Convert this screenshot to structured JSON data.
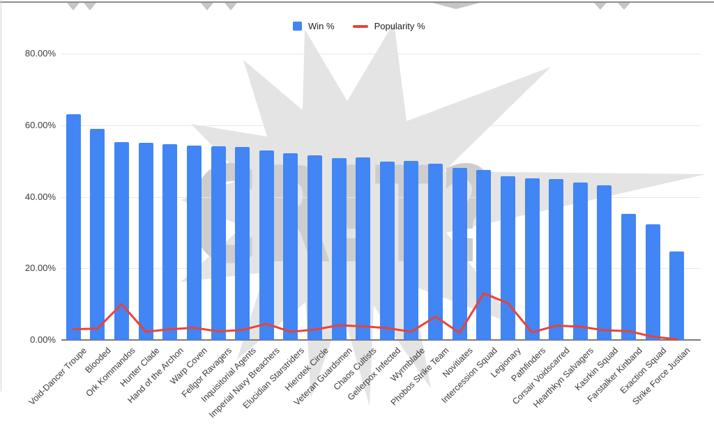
{
  "watermark": {
    "text": "CR!T?"
  },
  "chart_data": {
    "type": "bar",
    "title": "",
    "xlabel": "",
    "ylabel": "",
    "grid": true,
    "legend_position": "top-center",
    "categories": [
      "Void-Dancer Troupe",
      "Blooded",
      "Ork Kommandos",
      "Hunter Clade",
      "Hand of the Archon",
      "Warp Coven",
      "Fellgor Ravagers",
      "Inquisitorial Agents",
      "Imperial Navy Breachers",
      "Elucidian Starstriders",
      "Hierotek Circle",
      "Veteran Guardsmen",
      "Chaos Cultists",
      "Gellerpox Infected",
      "Wyrmblade",
      "Phobos Strike Team",
      "Novitiates",
      "Intercession Squad",
      "Legionary",
      "Pathfinders",
      "Corsair Voidscarred",
      "Hearthkyn Salvagers",
      "Kasrkin Squad",
      "Farstalker Kinband",
      "Exaction Squad",
      "Strike Force Justian"
    ],
    "series": [
      {
        "name": "Win %",
        "type": "bar",
        "color": "#4285F4",
        "values": [
          63,
          59,
          55.2,
          55,
          54.7,
          54.4,
          54.2,
          54,
          53,
          52.2,
          51.6,
          50.8,
          51,
          49.8,
          50,
          49.2,
          48,
          47.4,
          45.8,
          45.2,
          45,
          44,
          43.3,
          35.3,
          32.4,
          24.8
        ]
      },
      {
        "name": "Popularity %",
        "type": "line",
        "color": "#EA4335",
        "values": [
          3,
          3.2,
          10,
          2.3,
          3,
          3.4,
          2.4,
          2.8,
          4.5,
          2.3,
          2.9,
          4.1,
          3.8,
          3.3,
          2.3,
          6.5,
          2,
          13,
          10.3,
          2.1,
          4,
          3.7,
          2.7,
          2.5,
          0.9,
          0.2
        ]
      }
    ],
    "y_axis": {
      "range": [
        0,
        80
      ],
      "ticks": [
        {
          "label": "0.00%",
          "value": 0
        },
        {
          "label": "20.00%",
          "value": 20
        },
        {
          "label": "40.00%",
          "value": 40
        },
        {
          "label": "60.00%",
          "value": 60
        },
        {
          "label": "80.00%",
          "value": 80
        }
      ]
    }
  }
}
